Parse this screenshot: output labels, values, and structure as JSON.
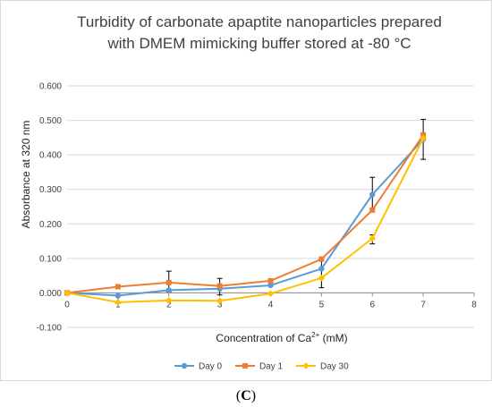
{
  "chart_data": {
    "type": "line",
    "title_lines": [
      "Turbidity of carbonate apaptite nanoparticles prepared",
      "with DMEM mimicking buffer stored at -80 °C"
    ],
    "title_sup": "o",
    "xlabel": "Concentration of Ca",
    "xlabel_sup": "2+",
    "xlabel_unit": " (mM)",
    "ylabel": "Absorbance at 320 nm",
    "xlim": [
      0,
      8
    ],
    "ylim": [
      -0.1,
      0.6
    ],
    "x_ticks": [
      "0",
      "1",
      "2",
      "3",
      "4",
      "5",
      "6",
      "7",
      "8"
    ],
    "y_ticks": [
      "0.600",
      "0.500",
      "0.400",
      "0.300",
      "0.200",
      "0.100",
      "0.000",
      "-0.100"
    ],
    "x": [
      0,
      1,
      2,
      3,
      4,
      5,
      6,
      7
    ],
    "series": [
      {
        "name": "Day 0",
        "color": "#5b9bd5",
        "values": [
          0.0,
          -0.008,
          0.008,
          0.012,
          0.022,
          0.07,
          0.285,
          0.445
        ]
      },
      {
        "name": "Day 1",
        "color": "#ed7d31",
        "values": [
          0.0,
          0.018,
          0.03,
          0.02,
          0.035,
          0.098,
          0.24,
          0.458
        ]
      },
      {
        "name": "Day 30",
        "color": "#ffc000",
        "values": [
          0.0,
          -0.027,
          -0.022,
          -0.023,
          -0.002,
          0.043,
          0.158,
          0.448
        ]
      }
    ],
    "error_bars": [
      {
        "x": 1,
        "center": -0.018,
        "half": 0.012
      },
      {
        "x": 2,
        "center": 0.033,
        "half": 0.03
      },
      {
        "x": 3,
        "center": 0.018,
        "half": 0.024
      },
      {
        "x": 4,
        "center": 0.03,
        "half": 0.008
      },
      {
        "x": 5,
        "center": 0.055,
        "half": 0.04
      },
      {
        "x": 6,
        "center": 0.155,
        "half": 0.013
      },
      {
        "x": 6,
        "center": 0.29,
        "half": 0.045
      },
      {
        "x": 7,
        "center": 0.445,
        "half": 0.058
      }
    ],
    "grid": "horizontal",
    "legend_position": "bottom"
  },
  "panel_label": {
    "open": "(",
    "letter": "C",
    "close": ")"
  }
}
